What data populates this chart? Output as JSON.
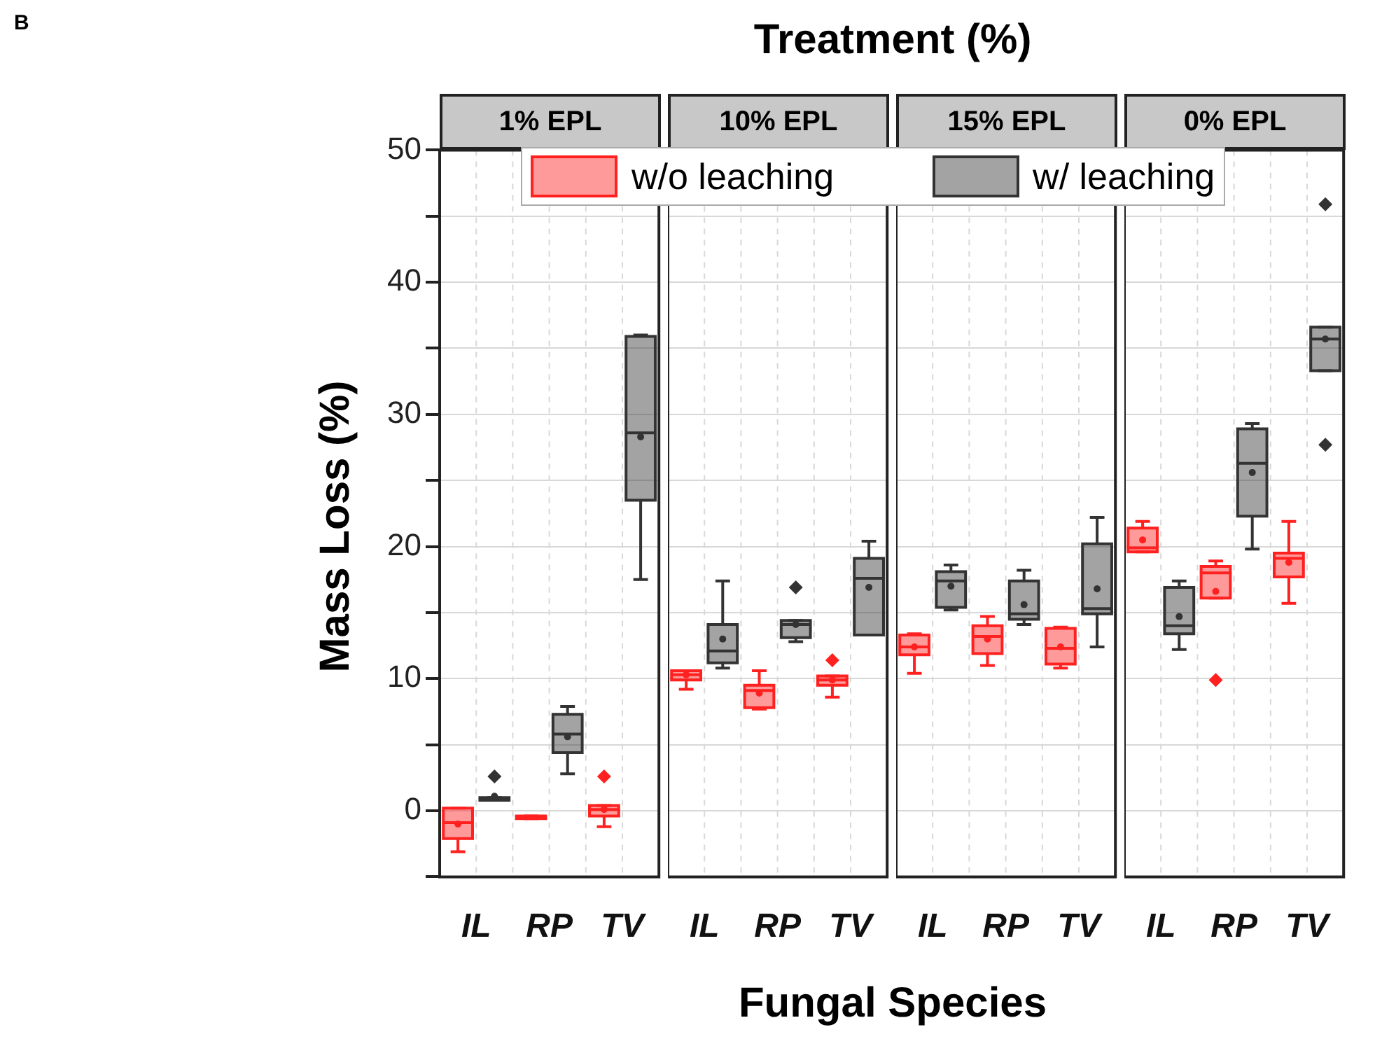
{
  "chart_data": [
    {
      "type": "box",
      "title": "1% EPL",
      "xlabel": "Fungal Species",
      "ylabel": "Mass Loss (%)",
      "annotations": [
        "B",
        "Treatment (%)"
      ],
      "categories": [
        "IL",
        "RP",
        "TV"
      ],
      "ylim": [
        -5,
        50
      ],
      "yticks": [
        {
          "value": -5,
          "label": null
        },
        0,
        {
          "value": 5,
          "label": null
        },
        10,
        {
          "value": 15,
          "label": null
        },
        20,
        {
          "value": 25,
          "label": null
        },
        30,
        {
          "value": 35,
          "label": null
        },
        40,
        {
          "value": 45,
          "label": null
        },
        50
      ],
      "grid": true,
      "legend": "top",
      "series": [
        {
          "name": "w/o leaching",
          "color": "#ff2020",
          "boxes": [
            {
              "low": -3.1,
              "q1": -2.1,
              "median": -0.9,
              "q3": 0.2,
              "high": 0.2,
              "mean": -1.0
            },
            {
              "low": -0.6,
              "q1": -0.6,
              "median": -0.5,
              "q3": -0.4,
              "high": -0.4
            },
            {
              "low": -1.2,
              "q1": -0.4,
              "median": 0.1,
              "q3": 0.4,
              "high": 0.4,
              "mean": 0.1,
              "outliers": [
                2.6
              ]
            }
          ]
        },
        {
          "name": "w/ leaching",
          "color": "#333333",
          "boxes": [
            {
              "low": 0.8,
              "q1": 0.8,
              "median": 0.9,
              "q3": 1.0,
              "high": 1.0,
              "mean": 1.1,
              "outliers": [
                2.6
              ]
            },
            {
              "low": 2.8,
              "q1": 4.4,
              "median": 5.8,
              "q3": 7.3,
              "high": 7.9,
              "mean": 5.6
            },
            {
              "low": 17.5,
              "q1": 23.5,
              "median": 28.6,
              "q3": 35.9,
              "high": 36.0,
              "mean": 28.3
            }
          ]
        }
      ]
    },
    {
      "type": "box",
      "title": "10% EPL",
      "categories": [
        "IL",
        "RP",
        "TV"
      ],
      "ylim": [
        -5,
        50
      ],
      "yticks": [
        {
          "value": -5,
          "label": null
        },
        0,
        {
          "value": 5,
          "label": null
        },
        10,
        {
          "value": 15,
          "label": null
        },
        20,
        {
          "value": 25,
          "label": null
        },
        30,
        {
          "value": 35,
          "label": null
        },
        40,
        {
          "value": 45,
          "label": null
        },
        50
      ],
      "grid": true,
      "tick_labels": "x",
      "series": [
        {
          "color": "#ff2020",
          "boxes": [
            {
              "low": 9.2,
              "q1": 9.9,
              "median": 10.3,
              "q3": 10.6,
              "high": 10.6,
              "mean": 10.3
            },
            {
              "low": 7.7,
              "q1": 7.8,
              "median": 9.1,
              "q3": 9.5,
              "high": 10.6,
              "mean": 8.9
            },
            {
              "low": 8.6,
              "q1": 9.5,
              "median": 9.9,
              "q3": 10.2,
              "high": 10.2,
              "mean": 9.9,
              "outliers": [
                11.4
              ]
            }
          ]
        },
        {
          "color": "#333333",
          "boxes": [
            {
              "low": 10.8,
              "q1": 11.2,
              "median": 12.1,
              "q3": 14.1,
              "high": 17.4,
              "mean": 13.0
            },
            {
              "low": 12.8,
              "q1": 13.1,
              "median": 14.1,
              "q3": 14.4,
              "high": 14.4,
              "mean": 14.1,
              "outliers": [
                16.9
              ]
            },
            {
              "low": 13.3,
              "q1": 13.3,
              "median": 17.6,
              "q3": 19.1,
              "high": 20.4,
              "mean": 16.9
            }
          ]
        }
      ]
    },
    {
      "type": "box",
      "title": "15% EPL",
      "categories": [
        "IL",
        "RP",
        "TV"
      ],
      "ylim": [
        -5,
        50
      ],
      "yticks": [
        {
          "value": -5,
          "label": null
        },
        0,
        {
          "value": 5,
          "label": null
        },
        10,
        {
          "value": 15,
          "label": null
        },
        20,
        {
          "value": 25,
          "label": null
        },
        30,
        {
          "value": 35,
          "label": null
        },
        40,
        {
          "value": 45,
          "label": null
        },
        50
      ],
      "grid": true,
      "tick_labels": "x",
      "series": [
        {
          "color": "#ff2020",
          "boxes": [
            {
              "low": 10.4,
              "q1": 11.8,
              "median": 12.4,
              "q3": 13.3,
              "high": 13.4,
              "mean": 12.4
            },
            {
              "low": 11.0,
              "q1": 11.9,
              "median": 13.2,
              "q3": 14.0,
              "high": 14.7,
              "mean": 13.0
            },
            {
              "low": 10.8,
              "q1": 11.1,
              "median": 12.3,
              "q3": 13.8,
              "high": 13.9,
              "mean": 12.4
            }
          ]
        },
        {
          "color": "#333333",
          "boxes": [
            {
              "low": 15.2,
              "q1": 15.4,
              "median": 17.4,
              "q3": 18.1,
              "high": 18.6,
              "mean": 17.0
            },
            {
              "low": 14.1,
              "q1": 14.5,
              "median": 14.9,
              "q3": 17.4,
              "high": 18.2,
              "mean": 15.6
            },
            {
              "low": 12.4,
              "q1": 14.9,
              "median": 15.3,
              "q3": 20.2,
              "high": 22.2,
              "mean": 16.8
            }
          ]
        }
      ]
    },
    {
      "type": "box",
      "title": "0% EPL",
      "categories": [
        "IL",
        "RP",
        "TV"
      ],
      "ylim": [
        -5,
        50
      ],
      "yticks": [
        {
          "value": -5,
          "label": null
        },
        0,
        {
          "value": 5,
          "label": null
        },
        10,
        {
          "value": 15,
          "label": null
        },
        20,
        {
          "value": 25,
          "label": null
        },
        30,
        {
          "value": 35,
          "label": null
        },
        40,
        {
          "value": 45,
          "label": null
        },
        50
      ],
      "grid": true,
      "tick_labels": "x",
      "series": [
        {
          "color": "#ff2020",
          "boxes": [
            {
              "low": 19.6,
              "q1": 19.6,
              "median": 19.9,
              "q3": 21.4,
              "high": 21.9,
              "mean": 20.5
            },
            {
              "low": 16.1,
              "q1": 16.1,
              "median": 18.0,
              "q3": 18.5,
              "high": 18.9,
              "mean": 16.6,
              "outliers": [
                9.9
              ]
            },
            {
              "low": 15.7,
              "q1": 17.7,
              "median": 19.1,
              "q3": 19.5,
              "high": 21.9,
              "mean": 18.8
            }
          ]
        },
        {
          "color": "#333333",
          "boxes": [
            {
              "low": 12.2,
              "q1": 13.4,
              "median": 14.0,
              "q3": 16.9,
              "high": 17.4,
              "mean": 14.7
            },
            {
              "low": 19.8,
              "q1": 22.3,
              "median": 26.3,
              "q3": 28.9,
              "high": 29.3,
              "mean": 25.6
            },
            {
              "low": 33.3,
              "q1": 33.3,
              "median": 35.7,
              "q3": 36.6,
              "high": 36.6,
              "mean": 35.7,
              "outliers": [
                45.9,
                27.7
              ]
            }
          ]
        }
      ]
    }
  ]
}
